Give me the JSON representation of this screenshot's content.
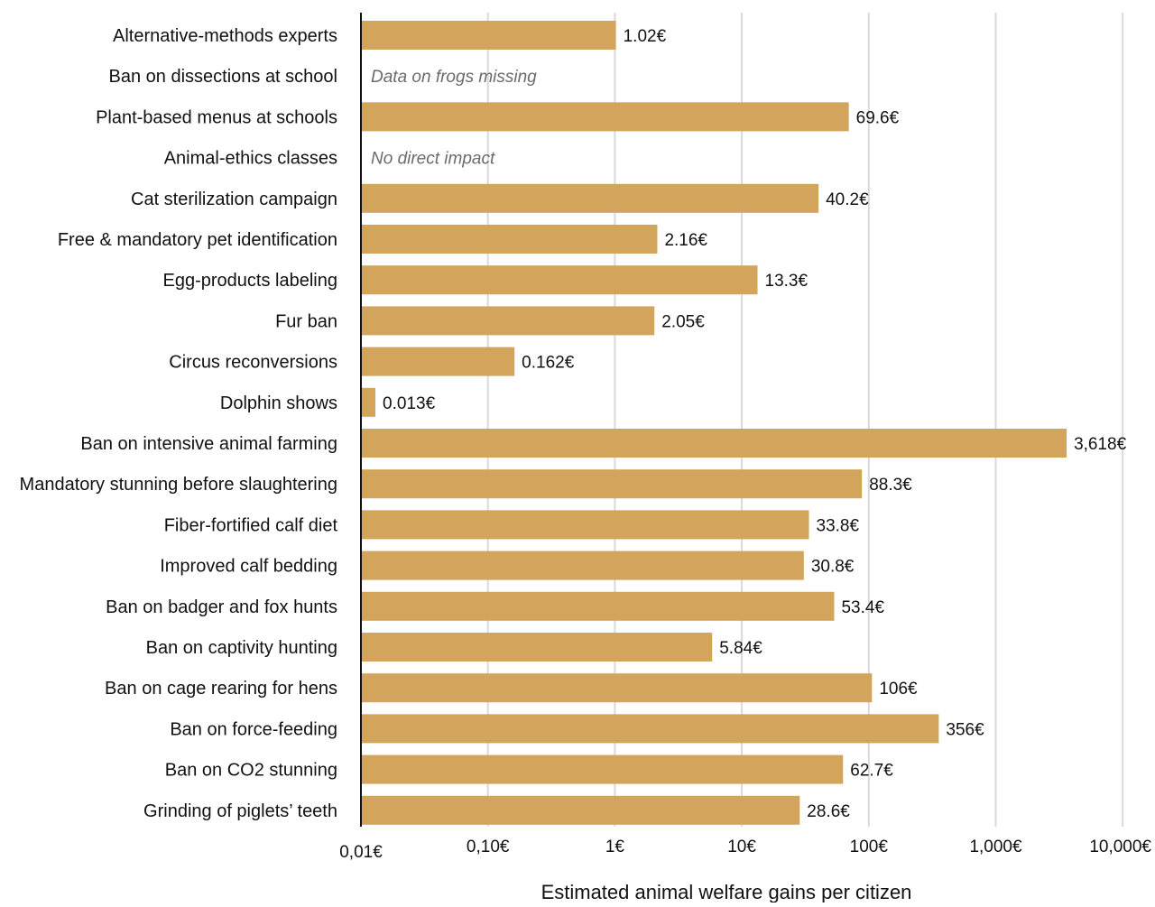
{
  "chart_data": {
    "type": "bar",
    "orientation": "horizontal",
    "scale": "log",
    "xlabel": "Estimated animal welfare gains per citizen",
    "xlim": [
      0.01,
      10000
    ],
    "grid": true,
    "bar_color": "#D2A45C",
    "x_ticks": [
      {
        "value": 0.01,
        "label": "0,01€"
      },
      {
        "value": 0.1,
        "label": "0,10€"
      },
      {
        "value": 1,
        "label": "1€"
      },
      {
        "value": 10,
        "label": "10€"
      },
      {
        "value": 100,
        "label": "100€"
      },
      {
        "value": 1000,
        "label": "1,000€"
      },
      {
        "value": 10000,
        "label": "10,000€"
      }
    ],
    "categories": [
      "Alternative-methods experts",
      "Ban on dissections at school",
      "Plant-based menus at schools",
      "Animal-ethics classes",
      "Cat sterilization campaign",
      "Free & mandatory pet identification",
      "Egg-products labeling",
      "Fur ban",
      "Circus reconversions",
      "Dolphin shows",
      "Ban on intensive animal farming",
      "Mandatory stunning before slaughtering",
      "Fiber-fortified calf diet",
      "Improved calf bedding",
      "Ban on badger and fox hunts",
      "Ban on captivity hunting",
      "Ban on cage rearing for hens",
      "Ban on force-feeding",
      "Ban on CO2 stunning",
      "Grinding of piglets’ teeth"
    ],
    "values": [
      1.02,
      null,
      69.6,
      null,
      40.2,
      2.16,
      13.3,
      2.05,
      0.162,
      0.013,
      3618,
      88.3,
      33.8,
      30.8,
      53.4,
      5.84,
      106,
      356,
      62.7,
      28.6
    ],
    "value_labels": [
      "1.02€",
      "",
      "69.6€",
      "",
      "40.2€",
      "2.16€",
      "13.3€",
      "2.05€",
      "0.162€",
      "0.013€",
      "3,618€",
      "88.3€",
      "33.8€",
      "30.8€",
      "53.4€",
      "5.84€",
      "106€",
      "356€",
      "62.7€",
      "28.6€"
    ],
    "notes": [
      "",
      "Data on frogs missing",
      "",
      "No direct impact",
      "",
      "",
      "",
      "",
      "",
      "",
      "",
      "",
      "",
      "",
      "",
      "",
      "",
      "",
      "",
      ""
    ]
  }
}
